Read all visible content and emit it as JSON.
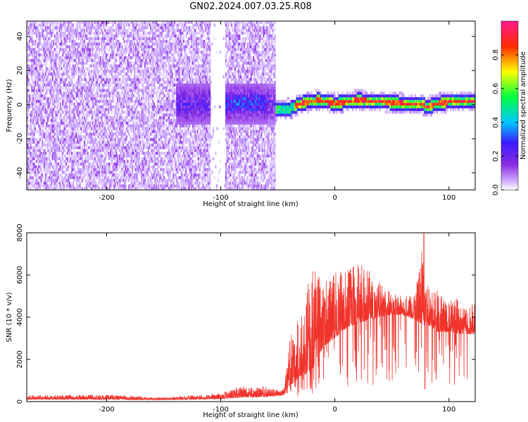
{
  "figure": {
    "title": "GN02.2024.007.03.25.R08"
  },
  "chart_data": [
    {
      "type": "heatmap",
      "title": "GN02.2024.007.03.25.R08",
      "xlabel": "Height of straight line (km)",
      "ylabel": "Frequency (Hz)",
      "xlim": [
        -270,
        123
      ],
      "ylim": [
        -50,
        49
      ],
      "xticks": [
        -200,
        -100,
        0,
        100
      ],
      "yticks": [
        -40,
        -20,
        0,
        20,
        40
      ],
      "grid": false,
      "colorbar": {
        "label": "Normalized spectral amplitude",
        "range": [
          0,
          1
        ],
        "ticks": [
          0.0,
          0.2,
          0.4,
          0.6,
          0.8
        ],
        "colormap": "gnuplot-rainbow (white→violet→blue→cyan→green→yellow→red→magenta)",
        "colors": [
          "#ffffff",
          "#8a2be2",
          "#3b1cff",
          "#00c8ff",
          "#00ff40",
          "#ffff00",
          "#ff2a00",
          "#ff1a8c"
        ]
      },
      "regions": [
        {
          "name": "noise",
          "x_range": [
            -270,
            -52
          ],
          "freq_range": [
            -50,
            49
          ],
          "amplitude_range": [
            0.0,
            0.2
          ],
          "note": "speckled violet noise, white vertical gap near -110 to -95"
        },
        {
          "name": "noise-core",
          "x_range": [
            -140,
            -52
          ],
          "freq_range": [
            -12,
            10
          ],
          "amplitude_range": [
            0.15,
            0.4
          ]
        },
        {
          "name": "signal-band",
          "x_range": [
            -52,
            123
          ],
          "center_freq": [
            [
              -52,
              -4
            ],
            [
              -40,
              -3
            ],
            [
              -30,
              0
            ],
            [
              -15,
              2
            ],
            [
              0,
              0
            ],
            [
              20,
              2
            ],
            [
              40,
              1
            ],
            [
              60,
              0
            ],
            [
              75,
              0
            ],
            [
              80,
              -2
            ],
            [
              90,
              0
            ],
            [
              100,
              1
            ],
            [
              123,
              1
            ]
          ],
          "amplitude_peak": 0.95
        }
      ]
    },
    {
      "type": "line",
      "xlabel": "Height of straight line (km)",
      "ylabel": "SNR (10 * v/v)",
      "xlim": [
        -270,
        123
      ],
      "ylim": [
        0,
        8000
      ],
      "xticks": [
        -200,
        -100,
        0,
        100
      ],
      "yticks": [
        0,
        2000,
        4000,
        6000,
        8000
      ],
      "grid": false,
      "series_color": "#f0342c",
      "envelope": {
        "x": [
          -270,
          -200,
          -150,
          -100,
          -80,
          -60,
          -45,
          -40,
          -30,
          -20,
          -10,
          0,
          10,
          20,
          30,
          40,
          50,
          60,
          70,
          78,
          80,
          90,
          100,
          110,
          123
        ],
        "baseline": [
          100,
          100,
          80,
          120,
          200,
          220,
          300,
          700,
          1200,
          1500,
          2600,
          3000,
          3500,
          3700,
          3900,
          4000,
          4150,
          4100,
          3900,
          3600,
          3700,
          3300,
          3300,
          3200,
          3200
        ],
        "peak": [
          300,
          350,
          200,
          400,
          800,
          700,
          600,
          2900,
          4300,
          6400,
          5700,
          6100,
          6200,
          6500,
          6400,
          5600,
          5100,
          5000,
          5000,
          8000,
          5500,
          5400,
          5000,
          4800,
          4600
        ]
      }
    }
  ]
}
